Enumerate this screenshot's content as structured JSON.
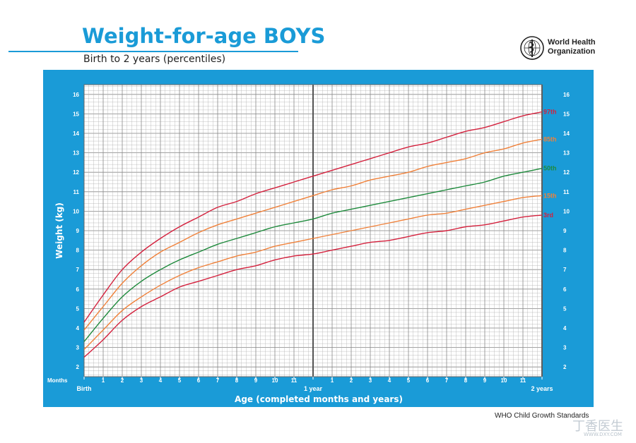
{
  "header": {
    "title": "Weight-for-age BOYS",
    "subtitle": "Birth to 2 years (percentiles)",
    "org_line1": "World Health",
    "org_line2": "Organization"
  },
  "footer": {
    "source": "WHO Child Growth Standards"
  },
  "watermark": {
    "main": "丁香医生",
    "sub": "WWW.DXY.COM"
  },
  "colors": {
    "frame": "#1a9bd7",
    "grid_bg": "#ffffff",
    "grid": "#b0b0b0",
    "p3": "#d4213d",
    "p15": "#f0813a",
    "p50": "#1e8a3c",
    "p85": "#f0813a",
    "p97": "#d4213d"
  },
  "chart_data": {
    "type": "line",
    "title": "Weight-for-age BOYS",
    "subtitle": "Birth to 2 years (percentiles)",
    "xlabel": "Age (completed months and years)",
    "ylabel": "Weight (kg)",
    "x_unit_label": "Months",
    "xlim": [
      0,
      24
    ],
    "ylim": [
      1.5,
      16.5
    ],
    "y_ticks": [
      2,
      3,
      4,
      5,
      6,
      7,
      8,
      9,
      10,
      11,
      12,
      13,
      14,
      15,
      16
    ],
    "x_ticks": [
      {
        "x": 0,
        "label": "Birth"
      },
      {
        "x": 1,
        "label": "1"
      },
      {
        "x": 2,
        "label": "2"
      },
      {
        "x": 3,
        "label": "3"
      },
      {
        "x": 4,
        "label": "4"
      },
      {
        "x": 5,
        "label": "5"
      },
      {
        "x": 6,
        "label": "6"
      },
      {
        "x": 7,
        "label": "7"
      },
      {
        "x": 8,
        "label": "8"
      },
      {
        "x": 9,
        "label": "9"
      },
      {
        "x": 10,
        "label": "10"
      },
      {
        "x": 11,
        "label": "11"
      },
      {
        "x": 12,
        "label": "1 year"
      },
      {
        "x": 13,
        "label": "1"
      },
      {
        "x": 14,
        "label": "2"
      },
      {
        "x": 15,
        "label": "3"
      },
      {
        "x": 16,
        "label": "4"
      },
      {
        "x": 17,
        "label": "5"
      },
      {
        "x": 18,
        "label": "6"
      },
      {
        "x": 19,
        "label": "7"
      },
      {
        "x": 20,
        "label": "8"
      },
      {
        "x": 21,
        "label": "9"
      },
      {
        "x": 22,
        "label": "10"
      },
      {
        "x": 23,
        "label": "11"
      },
      {
        "x": 24,
        "label": "2 years"
      }
    ],
    "x": [
      0,
      1,
      2,
      3,
      4,
      5,
      6,
      7,
      8,
      9,
      10,
      11,
      12,
      13,
      14,
      15,
      16,
      17,
      18,
      19,
      20,
      21,
      22,
      23,
      24
    ],
    "series": [
      {
        "name": "3rd",
        "color_key": "p3",
        "values": [
          2.5,
          3.4,
          4.4,
          5.1,
          5.6,
          6.1,
          6.4,
          6.7,
          7.0,
          7.2,
          7.5,
          7.7,
          7.8,
          8.0,
          8.2,
          8.4,
          8.5,
          8.7,
          8.9,
          9.0,
          9.2,
          9.3,
          9.5,
          9.7,
          9.8
        ]
      },
      {
        "name": "15th",
        "color_key": "p15",
        "values": [
          2.9,
          3.9,
          4.9,
          5.6,
          6.2,
          6.7,
          7.1,
          7.4,
          7.7,
          7.9,
          8.2,
          8.4,
          8.6,
          8.8,
          9.0,
          9.2,
          9.4,
          9.6,
          9.8,
          9.9,
          10.1,
          10.3,
          10.5,
          10.7,
          10.8
        ]
      },
      {
        "name": "50th",
        "color_key": "p50",
        "values": [
          3.3,
          4.5,
          5.6,
          6.4,
          7.0,
          7.5,
          7.9,
          8.3,
          8.6,
          8.9,
          9.2,
          9.4,
          9.6,
          9.9,
          10.1,
          10.3,
          10.5,
          10.7,
          10.9,
          11.1,
          11.3,
          11.5,
          11.8,
          12.0,
          12.2
        ]
      },
      {
        "name": "85th",
        "color_key": "p85",
        "values": [
          3.9,
          5.1,
          6.3,
          7.2,
          7.9,
          8.4,
          8.9,
          9.3,
          9.6,
          9.9,
          10.2,
          10.5,
          10.8,
          11.1,
          11.3,
          11.6,
          11.8,
          12.0,
          12.3,
          12.5,
          12.7,
          13.0,
          13.2,
          13.5,
          13.7
        ]
      },
      {
        "name": "97th",
        "color_key": "p97",
        "values": [
          4.3,
          5.7,
          7.0,
          7.9,
          8.6,
          9.2,
          9.7,
          10.2,
          10.5,
          10.9,
          11.2,
          11.5,
          11.8,
          12.1,
          12.4,
          12.7,
          13.0,
          13.3,
          13.5,
          13.8,
          14.1,
          14.3,
          14.6,
          14.9,
          15.1
        ]
      }
    ],
    "grid": true,
    "legend": "right-end labels"
  }
}
